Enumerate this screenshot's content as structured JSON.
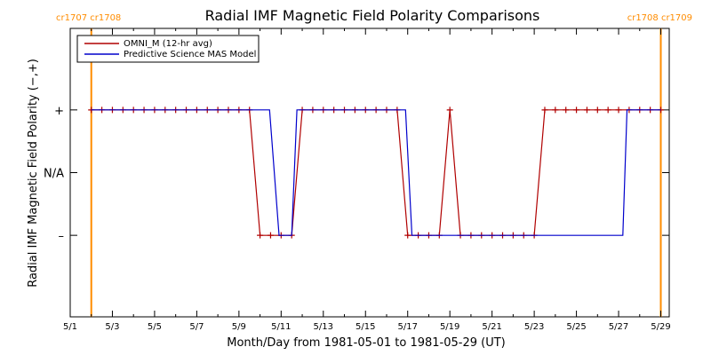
{
  "chart_data": {
    "type": "line",
    "title": "Radial IMF Magnetic Field Polarity Comparisons",
    "xlabel": "Month/Day from 1981-05-01 to 1981-05-29 (UT)",
    "ylabel": "Radial IMF Magnetic Field Polarity (−,+)",
    "xlim": [
      0,
      28.4
    ],
    "ylim": [
      -2.3,
      2.3
    ],
    "x_ticks": [
      {
        "x": 0,
        "label": "5/1"
      },
      {
        "x": 2,
        "label": "5/3"
      },
      {
        "x": 4,
        "label": "5/5"
      },
      {
        "x": 6,
        "label": "5/7"
      },
      {
        "x": 8,
        "label": "5/9"
      },
      {
        "x": 10,
        "label": "5/11"
      },
      {
        "x": 12,
        "label": "5/13"
      },
      {
        "x": 14,
        "label": "5/15"
      },
      {
        "x": 16,
        "label": "5/17"
      },
      {
        "x": 18,
        "label": "5/19"
      },
      {
        "x": 20,
        "label": "5/21"
      },
      {
        "x": 22,
        "label": "5/23"
      },
      {
        "x": 24,
        "label": "5/25"
      },
      {
        "x": 26,
        "label": "5/27"
      },
      {
        "x": 28,
        "label": "5/29"
      }
    ],
    "y_ticks": [
      {
        "y": 1,
        "label": "+"
      },
      {
        "y": 0,
        "label": "N/A"
      },
      {
        "y": -1,
        "label": "–"
      }
    ],
    "rotation_markers": [
      {
        "x": 1.0,
        "label": "cr1707 cr1708",
        "color": "#ff8c00",
        "side": "left"
      },
      {
        "x": 28.0,
        "label": "cr1708 cr1709",
        "color": "#ff8c00",
        "side": "right"
      }
    ],
    "grid": false,
    "legend_position": "top-left",
    "series": [
      {
        "name": "OMNI_M (12-hr avg)",
        "color": "#b00000",
        "markers": true,
        "points": [
          [
            1.0,
            1
          ],
          [
            1.5,
            1
          ],
          [
            2.0,
            1
          ],
          [
            2.5,
            1
          ],
          [
            3.0,
            1
          ],
          [
            3.5,
            1
          ],
          [
            4.0,
            1
          ],
          [
            4.5,
            1
          ],
          [
            5.0,
            1
          ],
          [
            5.5,
            1
          ],
          [
            6.0,
            1
          ],
          [
            6.5,
            1
          ],
          [
            7.0,
            1
          ],
          [
            7.5,
            1
          ],
          [
            8.0,
            1
          ],
          [
            8.5,
            1
          ],
          [
            9.0,
            -1
          ],
          [
            9.5,
            -1
          ],
          [
            10.0,
            -1
          ],
          [
            10.5,
            -1
          ],
          [
            11.0,
            1
          ],
          [
            11.5,
            1
          ],
          [
            12.0,
            1
          ],
          [
            12.5,
            1
          ],
          [
            13.0,
            1
          ],
          [
            13.5,
            1
          ],
          [
            14.0,
            1
          ],
          [
            14.5,
            1
          ],
          [
            15.0,
            1
          ],
          [
            15.5,
            1
          ],
          [
            16.0,
            -1
          ],
          [
            16.5,
            -1
          ],
          [
            17.0,
            -1
          ],
          [
            17.5,
            -1
          ],
          [
            18.0,
            1
          ],
          [
            18.5,
            -1
          ],
          [
            19.0,
            -1
          ],
          [
            19.5,
            -1
          ],
          [
            20.0,
            -1
          ],
          [
            20.5,
            -1
          ],
          [
            21.0,
            -1
          ],
          [
            21.5,
            -1
          ],
          [
            22.0,
            -1
          ],
          [
            22.5,
            1
          ],
          [
            23.0,
            1
          ],
          [
            23.5,
            1
          ],
          [
            24.0,
            1
          ],
          [
            24.5,
            1
          ],
          [
            25.0,
            1
          ],
          [
            25.5,
            1
          ],
          [
            26.0,
            1
          ],
          [
            26.5,
            1
          ],
          [
            27.0,
            1
          ],
          [
            27.5,
            1
          ],
          [
            28.0,
            1
          ]
        ]
      },
      {
        "name": "Predictive Science MAS Model",
        "color": "#0000cc",
        "markers": false,
        "points": [
          [
            1.0,
            1
          ],
          [
            9.45,
            1
          ],
          [
            9.9,
            -1
          ],
          [
            10.5,
            -1
          ],
          [
            10.75,
            1
          ],
          [
            15.9,
            1
          ],
          [
            16.2,
            -1
          ],
          [
            26.2,
            -1
          ],
          [
            26.4,
            1
          ],
          [
            28.0,
            1
          ]
        ]
      }
    ]
  }
}
